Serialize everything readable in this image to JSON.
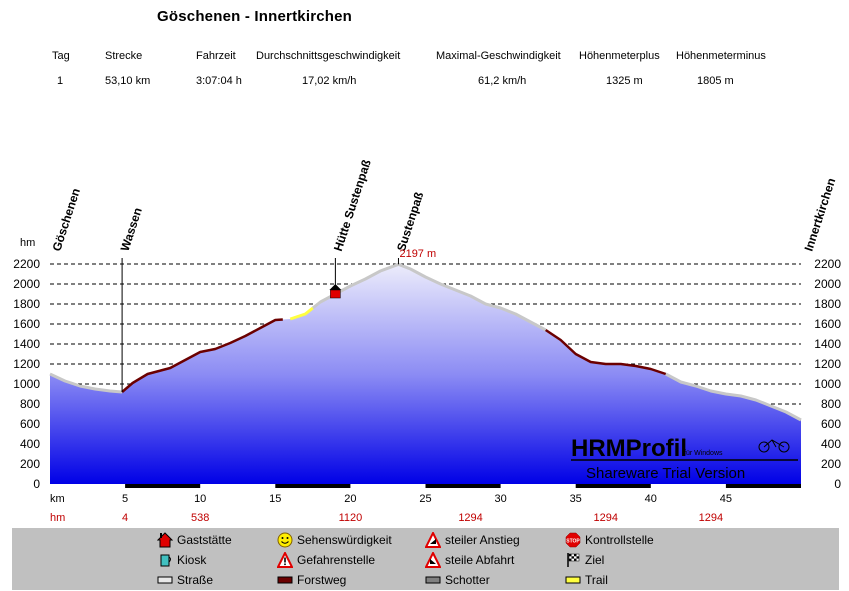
{
  "title": "Göschenen - Innertkirchen",
  "stats": {
    "headers": [
      "Tag",
      "Strecke",
      "Fahrzeit",
      "Durchschnittsgeschwindigkeit",
      "Maximal-Geschwindigkeit",
      "Höhenmeterplus",
      "Höhenmeterminus"
    ],
    "values": [
      "1",
      "53,10 km",
      "3:07:04 h",
      "17,02 km/h",
      "61,2 km/h",
      "1325 m",
      "1805 m"
    ]
  },
  "chart_data": {
    "type": "area",
    "ylabel": "hm",
    "xlabel": "km",
    "xlim": [
      0,
      50
    ],
    "ylim": [
      0,
      2200
    ],
    "yticks": [
      0,
      200,
      400,
      600,
      800,
      1000,
      1200,
      1400,
      1600,
      1800,
      2000,
      2200
    ],
    "xticks": [
      5,
      10,
      15,
      20,
      25,
      30,
      35,
      40,
      45
    ],
    "grid": "horizontal dashed",
    "elevation_row_label": "hm",
    "elevation_row": [
      {
        "x": 5,
        "label": "4"
      },
      {
        "x": 10,
        "label": "538"
      },
      {
        "x": 20,
        "label": "1120"
      },
      {
        "x": 28,
        "label": "1294"
      },
      {
        "x": 37,
        "label": "1294"
      },
      {
        "x": 44,
        "label": "1294"
      }
    ],
    "waypoints": [
      {
        "name": "Göschenen",
        "km": 0
      },
      {
        "name": "Wassen",
        "km": 4.8
      },
      {
        "name": "Hütte Sustenpaß",
        "km": 19
      },
      {
        "name": "Sustenpaß",
        "km": 23.2
      },
      {
        "name": "Innertkirchen",
        "km": 50
      }
    ],
    "peak_label": "2197 m",
    "profile": {
      "x": [
        0,
        1,
        2,
        3,
        4,
        4.8,
        5.5,
        6.5,
        8,
        9,
        10,
        11,
        12,
        13,
        14,
        15,
        16,
        17,
        18,
        19,
        20,
        21,
        22,
        23.2,
        24,
        25,
        26,
        27,
        28,
        29,
        30,
        31,
        32,
        33,
        34,
        35,
        36,
        37,
        38,
        39,
        40,
        41,
        42,
        43,
        44,
        45,
        46,
        47,
        48,
        49,
        50
      ],
      "y": [
        1100,
        1030,
        980,
        950,
        930,
        920,
        1010,
        1100,
        1160,
        1240,
        1320,
        1350,
        1410,
        1480,
        1560,
        1640,
        1650,
        1700,
        1820,
        1900,
        1980,
        2050,
        2130,
        2197,
        2150,
        2070,
        2000,
        1940,
        1880,
        1800,
        1760,
        1700,
        1620,
        1540,
        1440,
        1300,
        1220,
        1200,
        1200,
        1180,
        1150,
        1100,
        1020,
        980,
        930,
        900,
        880,
        840,
        780,
        720,
        640
      ]
    },
    "surface_segments": [
      {
        "type": "Straße",
        "from": 0,
        "to": 4.8
      },
      {
        "type": "Forstweg",
        "from": 4.8,
        "to": 15.5
      },
      {
        "type": "Trail",
        "from": 16,
        "to": 17.5
      },
      {
        "type": "Straße",
        "from": 17.5,
        "to": 33
      },
      {
        "type": "Forstweg",
        "from": 33,
        "to": 41
      },
      {
        "type": "Straße",
        "from": 41,
        "to": 50
      }
    ],
    "gaststaette_km": 19,
    "colors": {
      "strasse": "#c8c8c8",
      "forstweg": "#6b0000",
      "trail": "#ffff40",
      "fill_top": "#e8e8f8",
      "fill_bottom": "#0000ee",
      "label_red": "#c00000"
    }
  },
  "watermark": {
    "brand": "HRMProfil",
    "sub": "für Windows",
    "line2": "Shareware Trial  Version"
  },
  "legend": [
    {
      "label": "Gaststätte",
      "icon": "house-icon"
    },
    {
      "label": "Sehenswürdigkeit",
      "icon": "smiley-icon"
    },
    {
      "label": "steiler Anstieg",
      "icon": "warning-up-icon"
    },
    {
      "label": "Kontrollstelle",
      "icon": "stop-icon"
    },
    {
      "label": "Kiosk",
      "icon": "cup-icon"
    },
    {
      "label": "Gefahrenstelle",
      "icon": "warning-icon"
    },
    {
      "label": "steile Abfahrt",
      "icon": "warning-down-icon"
    },
    {
      "label": "Ziel",
      "icon": "checkered-flag-icon"
    },
    {
      "label": "Straße",
      "icon": "strasse-swatch-icon"
    },
    {
      "label": "Forstweg",
      "icon": "forstweg-swatch-icon"
    },
    {
      "label": "Schotter",
      "icon": "schotter-swatch-icon"
    },
    {
      "label": "Trail",
      "icon": "trail-swatch-icon"
    }
  ]
}
